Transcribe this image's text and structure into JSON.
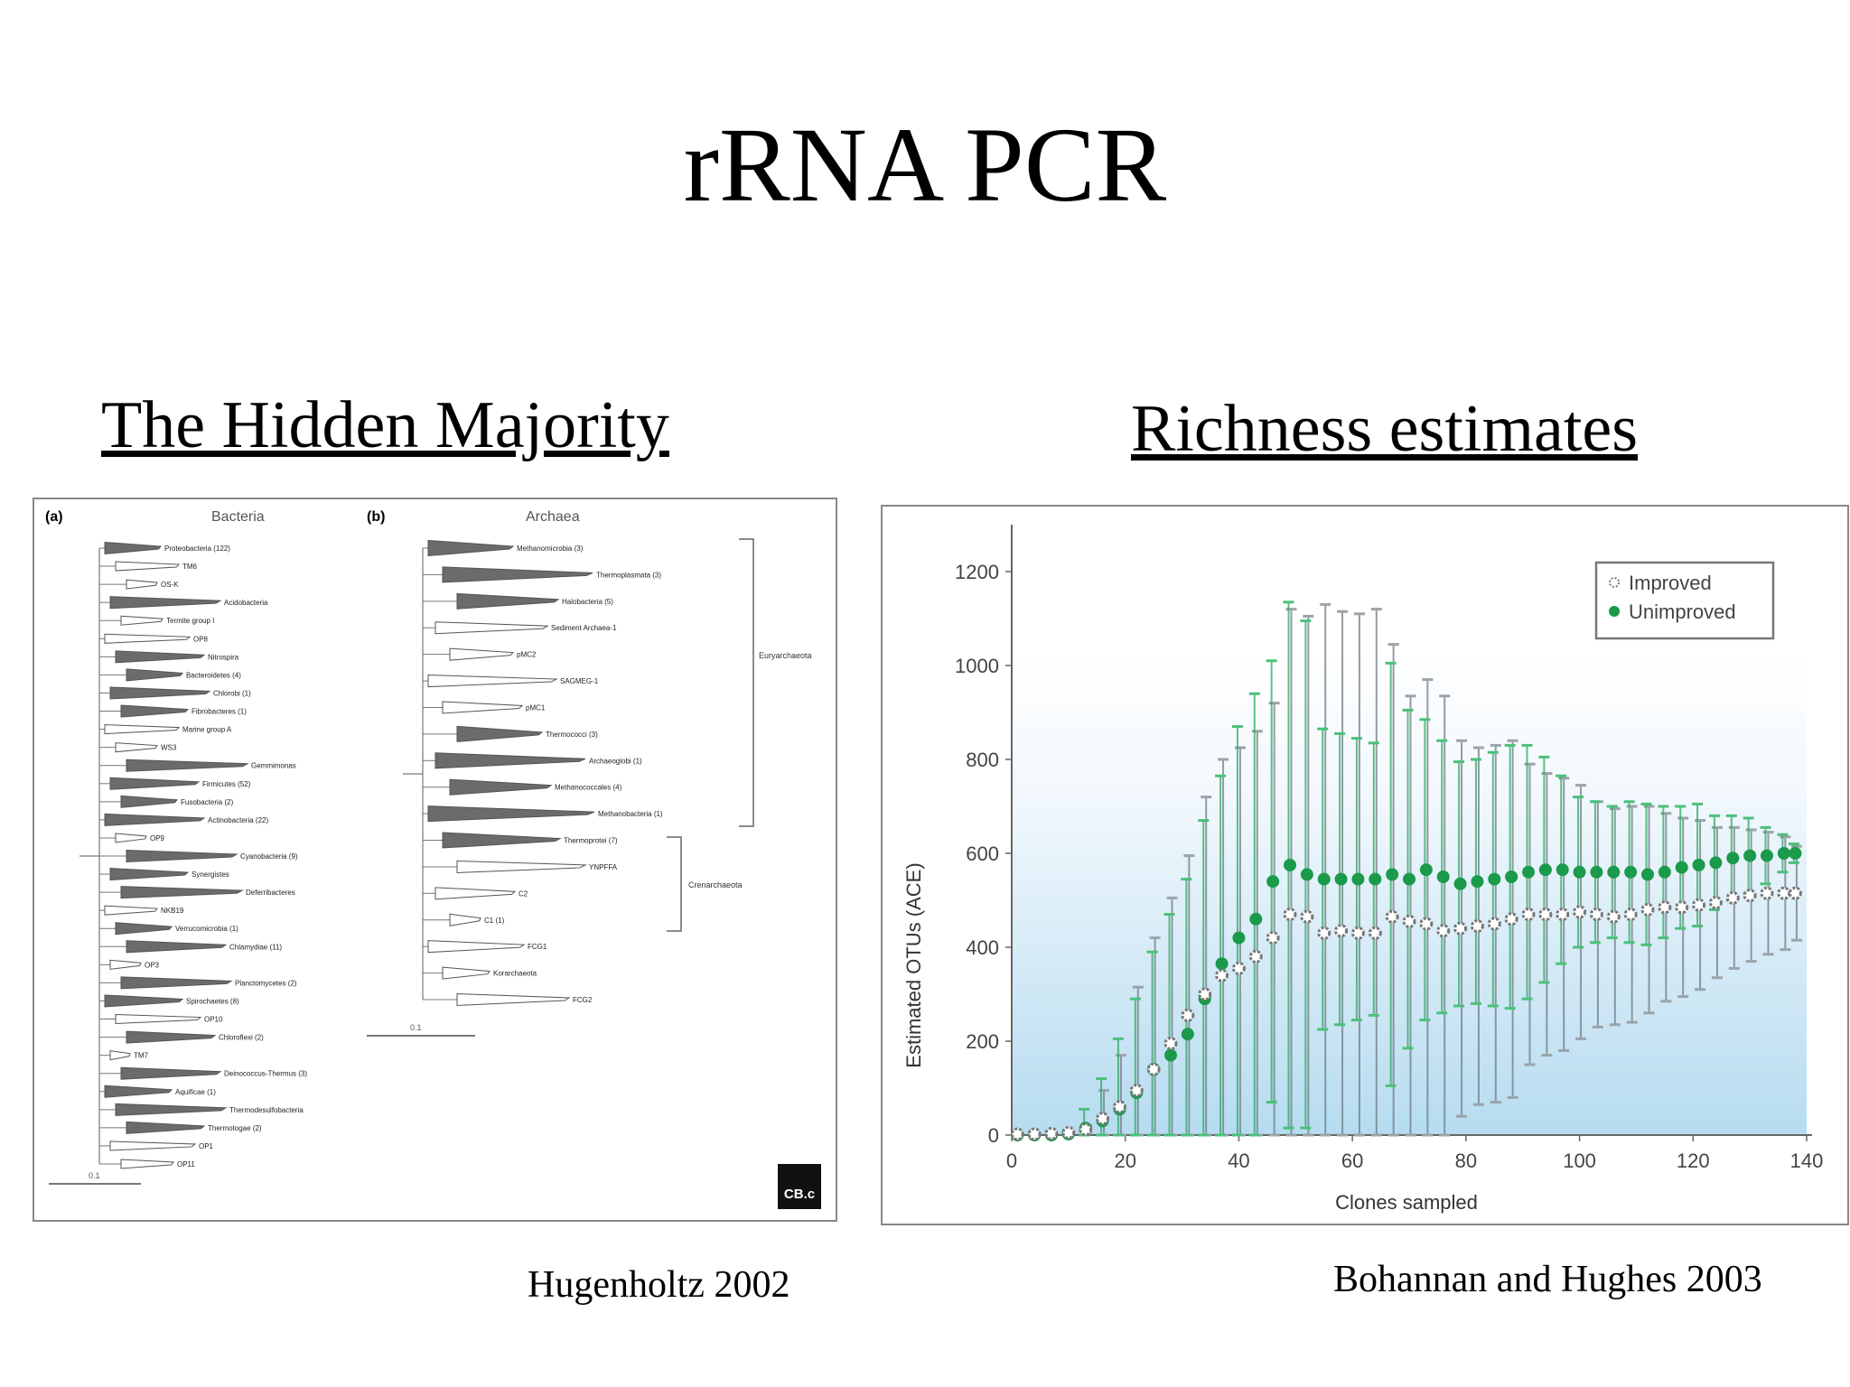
{
  "slide": {
    "title": "rRNA PCR",
    "left_heading": "The Hidden Majority",
    "right_heading": "Richness estimates",
    "left_citation": "Hugenholtz 2002",
    "right_citation": "Bohannan and Hughes 2003"
  },
  "tree": {
    "panel_a": {
      "label": "(a)",
      "title": "Bacteria",
      "scale": "0.1",
      "taxa": [
        {
          "name": "Proteobacteria (122)",
          "filled": true
        },
        {
          "name": "TM6",
          "filled": false
        },
        {
          "name": "OS-K",
          "filled": false
        },
        {
          "name": "Acidobacteria",
          "filled": true
        },
        {
          "name": "Termite group I",
          "filled": false
        },
        {
          "name": "OP8",
          "filled": false
        },
        {
          "name": "Nitrospira",
          "filled": true
        },
        {
          "name": "Bacteroidetes (4)",
          "filled": true
        },
        {
          "name": "Chlorobi (1)",
          "filled": true
        },
        {
          "name": "Fibrobacteres (1)",
          "filled": true
        },
        {
          "name": "Marine group A",
          "filled": false
        },
        {
          "name": "WS3",
          "filled": false
        },
        {
          "name": "Gemmimonas",
          "filled": true
        },
        {
          "name": "Firmicutes (52)",
          "filled": true
        },
        {
          "name": "Fusobacteria (2)",
          "filled": true
        },
        {
          "name": "Actinobacteria (22)",
          "filled": true
        },
        {
          "name": "OP9",
          "filled": false
        },
        {
          "name": "Cyanobacteria (9)",
          "filled": true
        },
        {
          "name": "Synergistes",
          "filled": true
        },
        {
          "name": "Deferribacteres",
          "filled": true
        },
        {
          "name": "NKB19",
          "filled": false
        },
        {
          "name": "Verrucomicrobia (1)",
          "filled": true
        },
        {
          "name": "Chlamydiae (11)",
          "filled": true
        },
        {
          "name": "OP3",
          "filled": false
        },
        {
          "name": "Planctomycetes (2)",
          "filled": true
        },
        {
          "name": "Spirochaetes (8)",
          "filled": true
        },
        {
          "name": "OP10",
          "filled": false
        },
        {
          "name": "Chloroflexi (2)",
          "filled": true
        },
        {
          "name": "TM7",
          "filled": false
        },
        {
          "name": "Deinococcus-Thermus (3)",
          "filled": true
        },
        {
          "name": "Aquificae (1)",
          "filled": true
        },
        {
          "name": "Thermodesulfobacteria",
          "filled": true
        },
        {
          "name": "Thermotogae (2)",
          "filled": true
        },
        {
          "name": "OP1",
          "filled": false
        },
        {
          "name": "OP11",
          "filled": false
        }
      ]
    },
    "panel_b": {
      "label": "(b)",
      "title": "Archaea",
      "scale": "0.1",
      "group_euryarchaeota": "Euryarchaeota",
      "group_crenarchaeota": "Crenarchaeota",
      "taxa": [
        {
          "name": "Methanomicrobia (3)",
          "filled": true
        },
        {
          "name": "Thermoplasmata (3)",
          "filled": true
        },
        {
          "name": "Halobacteria (5)",
          "filled": true
        },
        {
          "name": "Sediment Archaea-1",
          "filled": false
        },
        {
          "name": "pMC2",
          "filled": false
        },
        {
          "name": "SAGMEG-1",
          "filled": false
        },
        {
          "name": "pMC1",
          "filled": false
        },
        {
          "name": "Thermococci (3)",
          "filled": true
        },
        {
          "name": "Archaeoglobi (1)",
          "filled": true
        },
        {
          "name": "Methanococcales (4)",
          "filled": true
        },
        {
          "name": "Methanobacteria (1)",
          "filled": true
        },
        {
          "name": "Thermoprotei (7)",
          "filled": true
        },
        {
          "name": "YNPFFA",
          "filled": false
        },
        {
          "name": "C2",
          "filled": false
        },
        {
          "name": "C1 (1)",
          "filled": false
        },
        {
          "name": "FCG1",
          "filled": false
        },
        {
          "name": "Korarchaeota",
          "filled": false
        },
        {
          "name": "FCG2",
          "filled": false
        }
      ]
    },
    "logo": "CB.c"
  },
  "chart_data": {
    "type": "scatter",
    "xlabel": "Clones sampled",
    "ylabel": "Estimated OTUs (ACE)",
    "xlim": [
      0,
      140
    ],
    "ylim": [
      0,
      1300
    ],
    "xticks": [
      0,
      20,
      40,
      60,
      80,
      100,
      120,
      140
    ],
    "yticks": [
      0,
      200,
      400,
      600,
      800,
      1000,
      1200
    ],
    "legend_position": "top-right",
    "series": [
      {
        "name": "Improved",
        "color": "#777777",
        "marker": "open-circle",
        "x": [
          1,
          4,
          7,
          10,
          13,
          16,
          19,
          22,
          25,
          28,
          31,
          34,
          37,
          40,
          43,
          46,
          49,
          52,
          55,
          58,
          61,
          64,
          67,
          70,
          73,
          76,
          79,
          82,
          85,
          88,
          91,
          94,
          97,
          100,
          103,
          106,
          109,
          112,
          115,
          118,
          121,
          124,
          127,
          130,
          133,
          136,
          138
        ],
        "y": [
          2,
          2,
          3,
          5,
          12,
          35,
          60,
          95,
          140,
          195,
          255,
          300,
          340,
          355,
          380,
          420,
          470,
          465,
          430,
          435,
          430,
          430,
          465,
          455,
          450,
          435,
          440,
          445,
          450,
          460,
          470,
          470,
          470,
          475,
          470,
          465,
          470,
          480,
          485,
          485,
          490,
          495,
          505,
          510,
          515,
          515,
          515
        ],
        "err": [
          0,
          0,
          0,
          0,
          8,
          60,
          110,
          220,
          280,
          310,
          340,
          420,
          460,
          470,
          480,
          500,
          650,
          640,
          700,
          680,
          680,
          690,
          580,
          480,
          520,
          500,
          400,
          380,
          380,
          380,
          320,
          300,
          290,
          270,
          240,
          230,
          230,
          220,
          200,
          190,
          180,
          160,
          150,
          140,
          130,
          120,
          100
        ]
      },
      {
        "name": "Unimproved",
        "color": "#1a9a4a",
        "marker": "filled-circle",
        "x": [
          1,
          4,
          7,
          10,
          13,
          16,
          19,
          22,
          25,
          28,
          31,
          34,
          37,
          40,
          43,
          46,
          49,
          52,
          55,
          58,
          61,
          64,
          67,
          70,
          73,
          76,
          79,
          82,
          85,
          88,
          91,
          94,
          97,
          100,
          103,
          106,
          109,
          112,
          115,
          118,
          121,
          124,
          127,
          130,
          133,
          136,
          138
        ],
        "y": [
          0,
          0,
          0,
          2,
          15,
          30,
          55,
          90,
          140,
          170,
          215,
          290,
          365,
          420,
          460,
          540,
          575,
          555,
          545,
          545,
          545,
          545,
          555,
          545,
          565,
          550,
          535,
          540,
          545,
          550,
          560,
          565,
          565,
          560,
          560,
          560,
          560,
          555,
          560,
          570,
          575,
          580,
          590,
          595,
          595,
          600,
          600
        ],
        "err": [
          0,
          0,
          0,
          5,
          40,
          90,
          150,
          200,
          250,
          300,
          330,
          380,
          400,
          450,
          480,
          470,
          560,
          540,
          320,
          310,
          300,
          290,
          450,
          360,
          320,
          290,
          260,
          260,
          270,
          280,
          270,
          240,
          200,
          160,
          150,
          140,
          150,
          150,
          140,
          130,
          130,
          100,
          90,
          80,
          60,
          40,
          20
        ]
      }
    ]
  }
}
